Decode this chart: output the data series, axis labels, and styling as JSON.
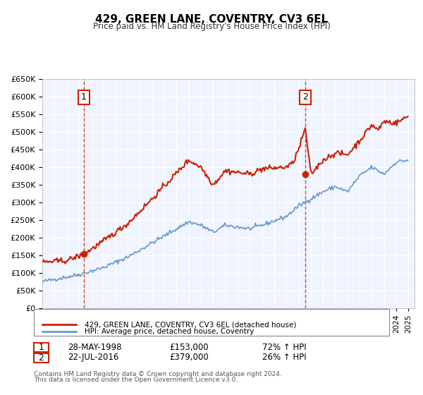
{
  "title": "429, GREEN LANE, COVENTRY, CV3 6EL",
  "subtitle": "Price paid vs. HM Land Registry's House Price Index (HPI)",
  "legend_line1": "429, GREEN LANE, COVENTRY, CV3 6EL (detached house)",
  "legend_line2": "HPI: Average price, detached house, Coventry",
  "annotation1_label": "1",
  "annotation1_date": "28-MAY-1998",
  "annotation1_price": 153000,
  "annotation1_hpi": "72% ↑ HPI",
  "annotation2_label": "2",
  "annotation2_date": "22-JUL-2016",
  "annotation2_price": 379000,
  "annotation2_hpi": "26% ↑ HPI",
  "footer1": "Contains HM Land Registry data © Crown copyright and database right 2024.",
  "footer2": "This data is licensed under the Open Government Licence v3.0.",
  "hpi_color": "#6699cc",
  "price_color": "#cc2200",
  "background_color": "#f0f4ff",
  "grid_color": "#ffffff",
  "ylim": [
    0,
    650000
  ],
  "xlim_start": 1995.0,
  "xlim_end": 2025.5
}
